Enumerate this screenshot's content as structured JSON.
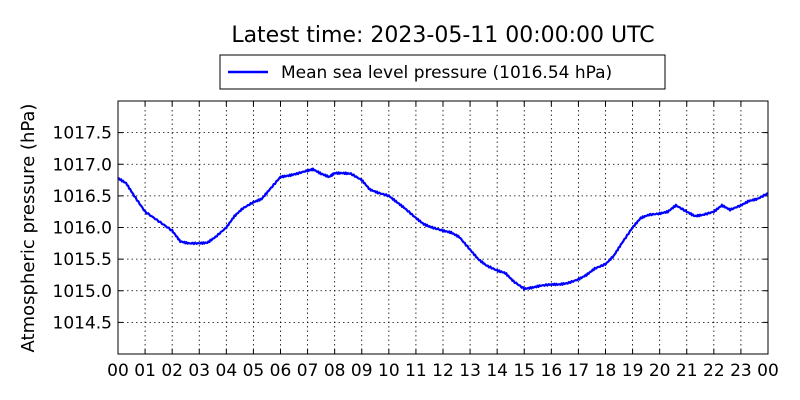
{
  "chart_data": {
    "type": "line",
    "title": "Latest time: 2023-05-11 00:00:00 UTC",
    "xlabel": "",
    "ylabel": "Atmospheric pressure (hPa)",
    "xlim": [
      0,
      24
    ],
    "ylim": [
      1014.0,
      1018.0
    ],
    "x_ticks": [
      "00",
      "01",
      "02",
      "03",
      "04",
      "05",
      "06",
      "07",
      "08",
      "09",
      "10",
      "11",
      "12",
      "13",
      "14",
      "15",
      "16",
      "17",
      "18",
      "19",
      "20",
      "21",
      "22",
      "23",
      "00"
    ],
    "y_ticks": [
      1014.5,
      1015.0,
      1015.5,
      1016.0,
      1016.5,
      1017.0,
      1017.5
    ],
    "y_tick_labels": [
      "1014.5",
      "1015.0",
      "1015.5",
      "1016.0",
      "1016.5",
      "1017.0",
      "1017.5"
    ],
    "grid": true,
    "legend_position": "top-center",
    "series": [
      {
        "name": "Mean sea level pressure (1016.54 hPa)",
        "color": "#0000ff",
        "x": [
          0,
          0.3,
          0.6,
          1.0,
          1.5,
          2.0,
          2.3,
          2.6,
          3.0,
          3.3,
          3.6,
          4.0,
          4.3,
          4.6,
          5.0,
          5.3,
          5.6,
          6.0,
          6.3,
          6.6,
          7.0,
          7.2,
          7.5,
          7.8,
          8.0,
          8.3,
          8.6,
          9.0,
          9.3,
          9.6,
          10.0,
          10.3,
          10.6,
          11.0,
          11.3,
          11.6,
          12.0,
          12.3,
          12.6,
          13.0,
          13.3,
          13.6,
          14.0,
          14.3,
          14.6,
          15.0,
          15.3,
          15.6,
          16.0,
          16.3,
          16.6,
          17.0,
          17.3,
          17.6,
          18.0,
          18.3,
          18.6,
          19.0,
          19.3,
          19.6,
          20.0,
          20.3,
          20.6,
          21.0,
          21.3,
          21.6,
          22.0,
          22.3,
          22.6,
          23.0,
          23.3,
          23.6,
          24.0
        ],
        "y": [
          1016.78,
          1016.7,
          1016.5,
          1016.25,
          1016.1,
          1015.95,
          1015.78,
          1015.75,
          1015.75,
          1015.76,
          1015.85,
          1016.0,
          1016.18,
          1016.3,
          1016.4,
          1016.45,
          1016.6,
          1016.8,
          1016.82,
          1016.85,
          1016.9,
          1016.92,
          1016.85,
          1016.8,
          1016.86,
          1016.86,
          1016.85,
          1016.75,
          1016.6,
          1016.55,
          1016.5,
          1016.4,
          1016.3,
          1016.15,
          1016.05,
          1016.0,
          1015.95,
          1015.92,
          1015.85,
          1015.65,
          1015.5,
          1015.4,
          1015.32,
          1015.28,
          1015.15,
          1015.03,
          1015.05,
          1015.08,
          1015.1,
          1015.1,
          1015.12,
          1015.18,
          1015.25,
          1015.35,
          1015.42,
          1015.55,
          1015.75,
          1016.0,
          1016.15,
          1016.2,
          1016.22,
          1016.25,
          1016.35,
          1016.25,
          1016.18,
          1016.2,
          1016.25,
          1016.35,
          1016.28,
          1016.35,
          1016.42,
          1016.45,
          1016.54
        ]
      }
    ]
  }
}
